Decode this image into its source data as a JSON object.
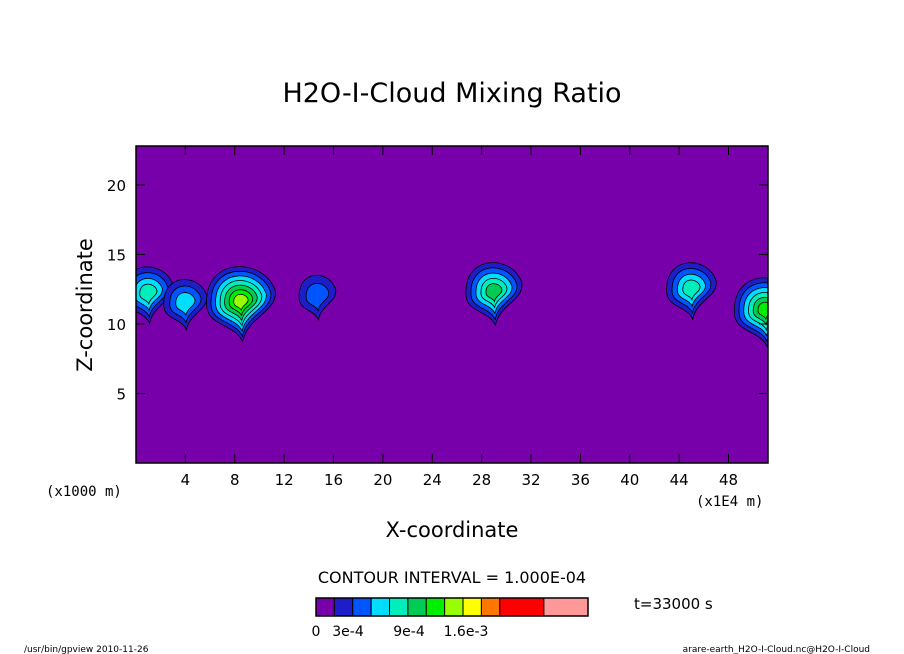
{
  "chart_data": {
    "type": "contour",
    "title": "H2O-I-Cloud Mixing Ratio",
    "xlabel": "X-coordinate",
    "ylabel": "Z-coordinate",
    "x_units_note_left": "(x1000 m)",
    "x_units_note_right": "(x1E4 m)",
    "x_ticks": [
      "4",
      "8",
      "12",
      "16",
      "20",
      "24",
      "28",
      "32",
      "36",
      "40",
      "44",
      "48"
    ],
    "y_ticks": [
      "5",
      "10",
      "15",
      "20"
    ],
    "xlim": [
      0,
      51.2
    ],
    "ylim": [
      0,
      22.8
    ],
    "contour_interval_label": "CONTOUR INTERVAL = 1.000E-04",
    "time_label": "t=33000 s",
    "background_color": "#7700aa",
    "colorbar": {
      "colors": [
        "#7700aa",
        "#1e1ec8",
        "#0055ff",
        "#00ddff",
        "#00eebb",
        "#00cc55",
        "#00ee00",
        "#99ff00",
        "#ffff00",
        "#ff7700",
        "#ff0000",
        "#ff9999"
      ],
      "labels": [
        "0",
        "3e-4",
        "9e-4",
        "1.6e-3"
      ],
      "label_positions": [
        0,
        1,
        3,
        5
      ]
    },
    "cloud_blobs": [
      {
        "x_center": 1,
        "z_center": 12.2,
        "max_level": 4
      },
      {
        "x_center": 4,
        "z_center": 11.5,
        "max_level": 3
      },
      {
        "x_center": 8.5,
        "z_center": 11.6,
        "max_level": 7
      },
      {
        "x_center": 14.7,
        "z_center": 12.0,
        "max_level": 2
      },
      {
        "x_center": 29,
        "z_center": 12.3,
        "max_level": 5
      },
      {
        "x_center": 45,
        "z_center": 12.5,
        "max_level": 4
      },
      {
        "x_center": 51,
        "z_center": 11.0,
        "max_level": 6
      }
    ]
  },
  "footer": {
    "left": "/usr/bin/gpview  2010-11-26",
    "right": "arare-earth_H2O-I-Cloud.nc@H2O-I-Cloud"
  }
}
